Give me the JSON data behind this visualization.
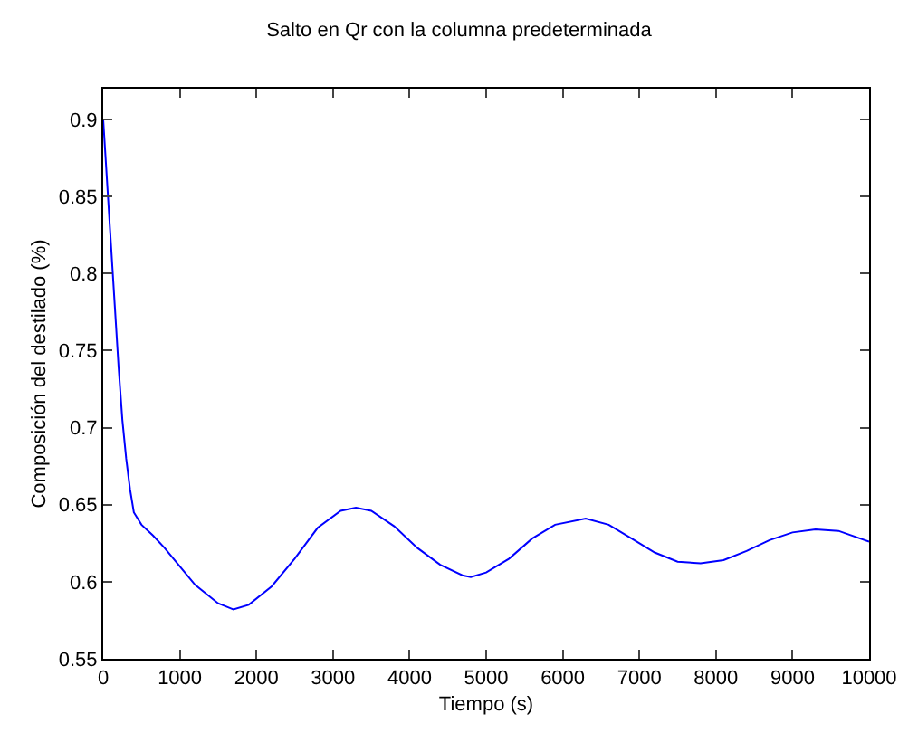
{
  "chart_data": {
    "type": "line",
    "title": "Salto en Qr con la columna predeterminada",
    "xlabel": "Tiempo (s)",
    "ylabel": "Composición del destilado (%)",
    "x": [
      0,
      50,
      100,
      150,
      200,
      250,
      300,
      350,
      400,
      500,
      650,
      800,
      1000,
      1200,
      1500,
      1700,
      1900,
      2200,
      2500,
      2800,
      3100,
      3300,
      3500,
      3800,
      4100,
      4400,
      4700,
      4800,
      5000,
      5300,
      5600,
      5900,
      6300,
      6600,
      6900,
      7200,
      7500,
      7800,
      8100,
      8400,
      8700,
      9000,
      9300,
      9600,
      10000
    ],
    "series": [
      {
        "color": "#0000ff",
        "values": [
          0.9,
          0.86,
          0.82,
          0.78,
          0.74,
          0.705,
          0.68,
          0.66,
          0.645,
          0.637,
          0.63,
          0.622,
          0.61,
          0.598,
          0.586,
          0.582,
          0.585,
          0.597,
          0.615,
          0.635,
          0.646,
          0.648,
          0.646,
          0.636,
          0.622,
          0.611,
          0.604,
          0.603,
          0.606,
          0.615,
          0.628,
          0.637,
          0.641,
          0.637,
          0.628,
          0.619,
          0.613,
          0.612,
          0.614,
          0.62,
          0.627,
          0.632,
          0.634,
          0.633,
          0.626
        ]
      }
    ],
    "xlim": [
      0,
      10000
    ],
    "xticks": [
      0,
      1000,
      2000,
      3000,
      4000,
      5000,
      6000,
      7000,
      8000,
      9000,
      10000
    ],
    "ylim": [
      0.55,
      0.92
    ],
    "yticks": [
      0.55,
      0.6,
      0.65,
      0.7,
      0.75,
      0.8,
      0.85,
      0.9
    ],
    "grid": false,
    "line_style": "solid",
    "marker": "none"
  }
}
